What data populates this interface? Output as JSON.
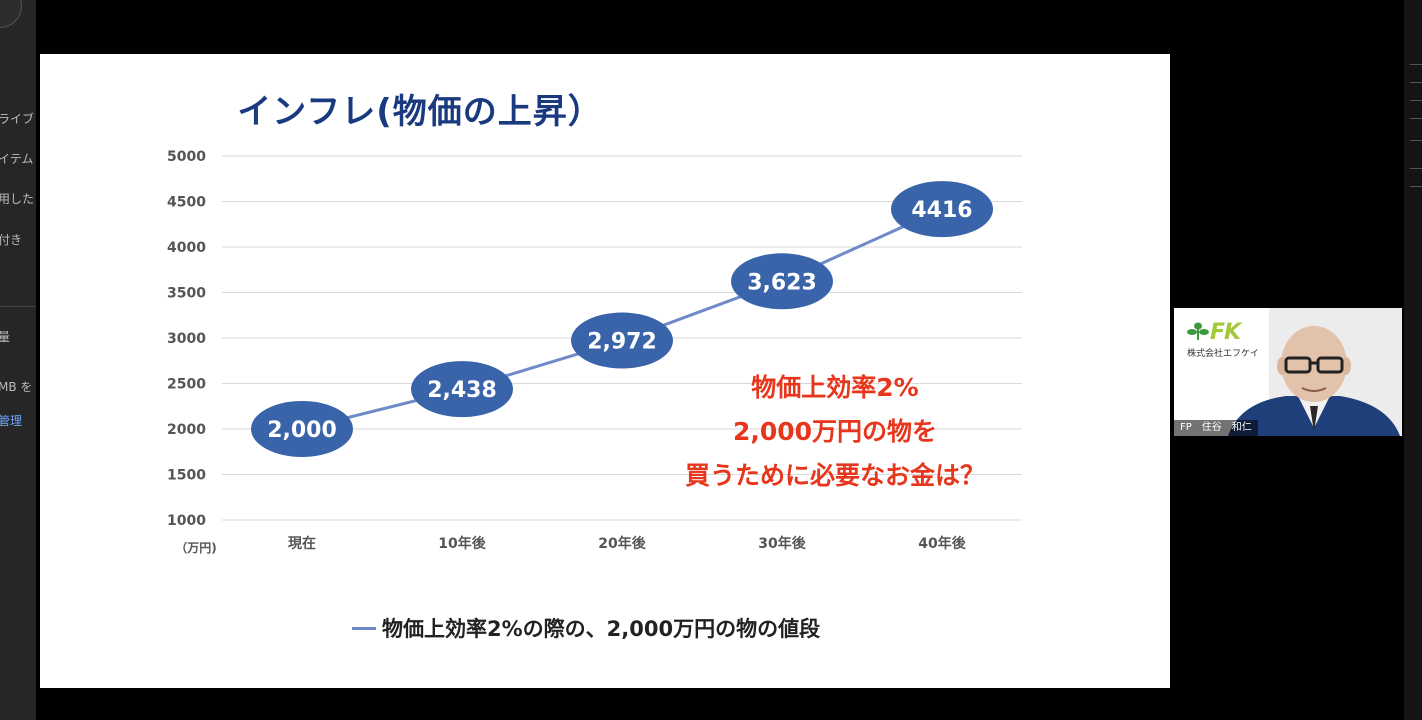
{
  "left_strip": {
    "items": [
      {
        "label": "ライブ",
        "link": false
      },
      {
        "label": "イテム",
        "link": false
      },
      {
        "label": "用した",
        "link": false
      },
      {
        "label": "付き",
        "link": false
      },
      {
        "label": "量",
        "link": false
      },
      {
        "label": "MB を",
        "link": false
      },
      {
        "label": "管理",
        "link": true
      }
    ]
  },
  "slide": {
    "title": "インフレ(物価の上昇）",
    "note_lines": [
      "物価上効率2%",
      "2,000万円の物を",
      "買うために必要なお金は？"
    ],
    "legend_label": "物価上効率2%の際の、2,000万円の物の値段",
    "series_color": "#6f8ac8",
    "marker_color": "#3a64aa"
  },
  "chart_data": {
    "type": "line",
    "categories": [
      "現在",
      "10年後",
      "20年後",
      "30年後",
      "40年後"
    ],
    "series": [
      {
        "name": "物価上効率2%の際の、2,000万円の物の値段",
        "values": [
          2000,
          2438,
          2972,
          3623,
          4416
        ]
      }
    ],
    "data_labels": [
      "2,000",
      "2,438",
      "2,972",
      "3,623",
      "4416"
    ],
    "y_ticks": [
      1000,
      1500,
      2000,
      2500,
      3000,
      3500,
      4000,
      4500,
      5000
    ],
    "ylim": [
      1000,
      5000
    ],
    "unit_label": "（万円)",
    "grid": true,
    "legend_position": "bottom"
  },
  "webcam": {
    "logo": "FK",
    "company": "株式会社エフケイ",
    "name_tag": "FP　住谷　和仁",
    "logo_color": "#a3c93a"
  }
}
